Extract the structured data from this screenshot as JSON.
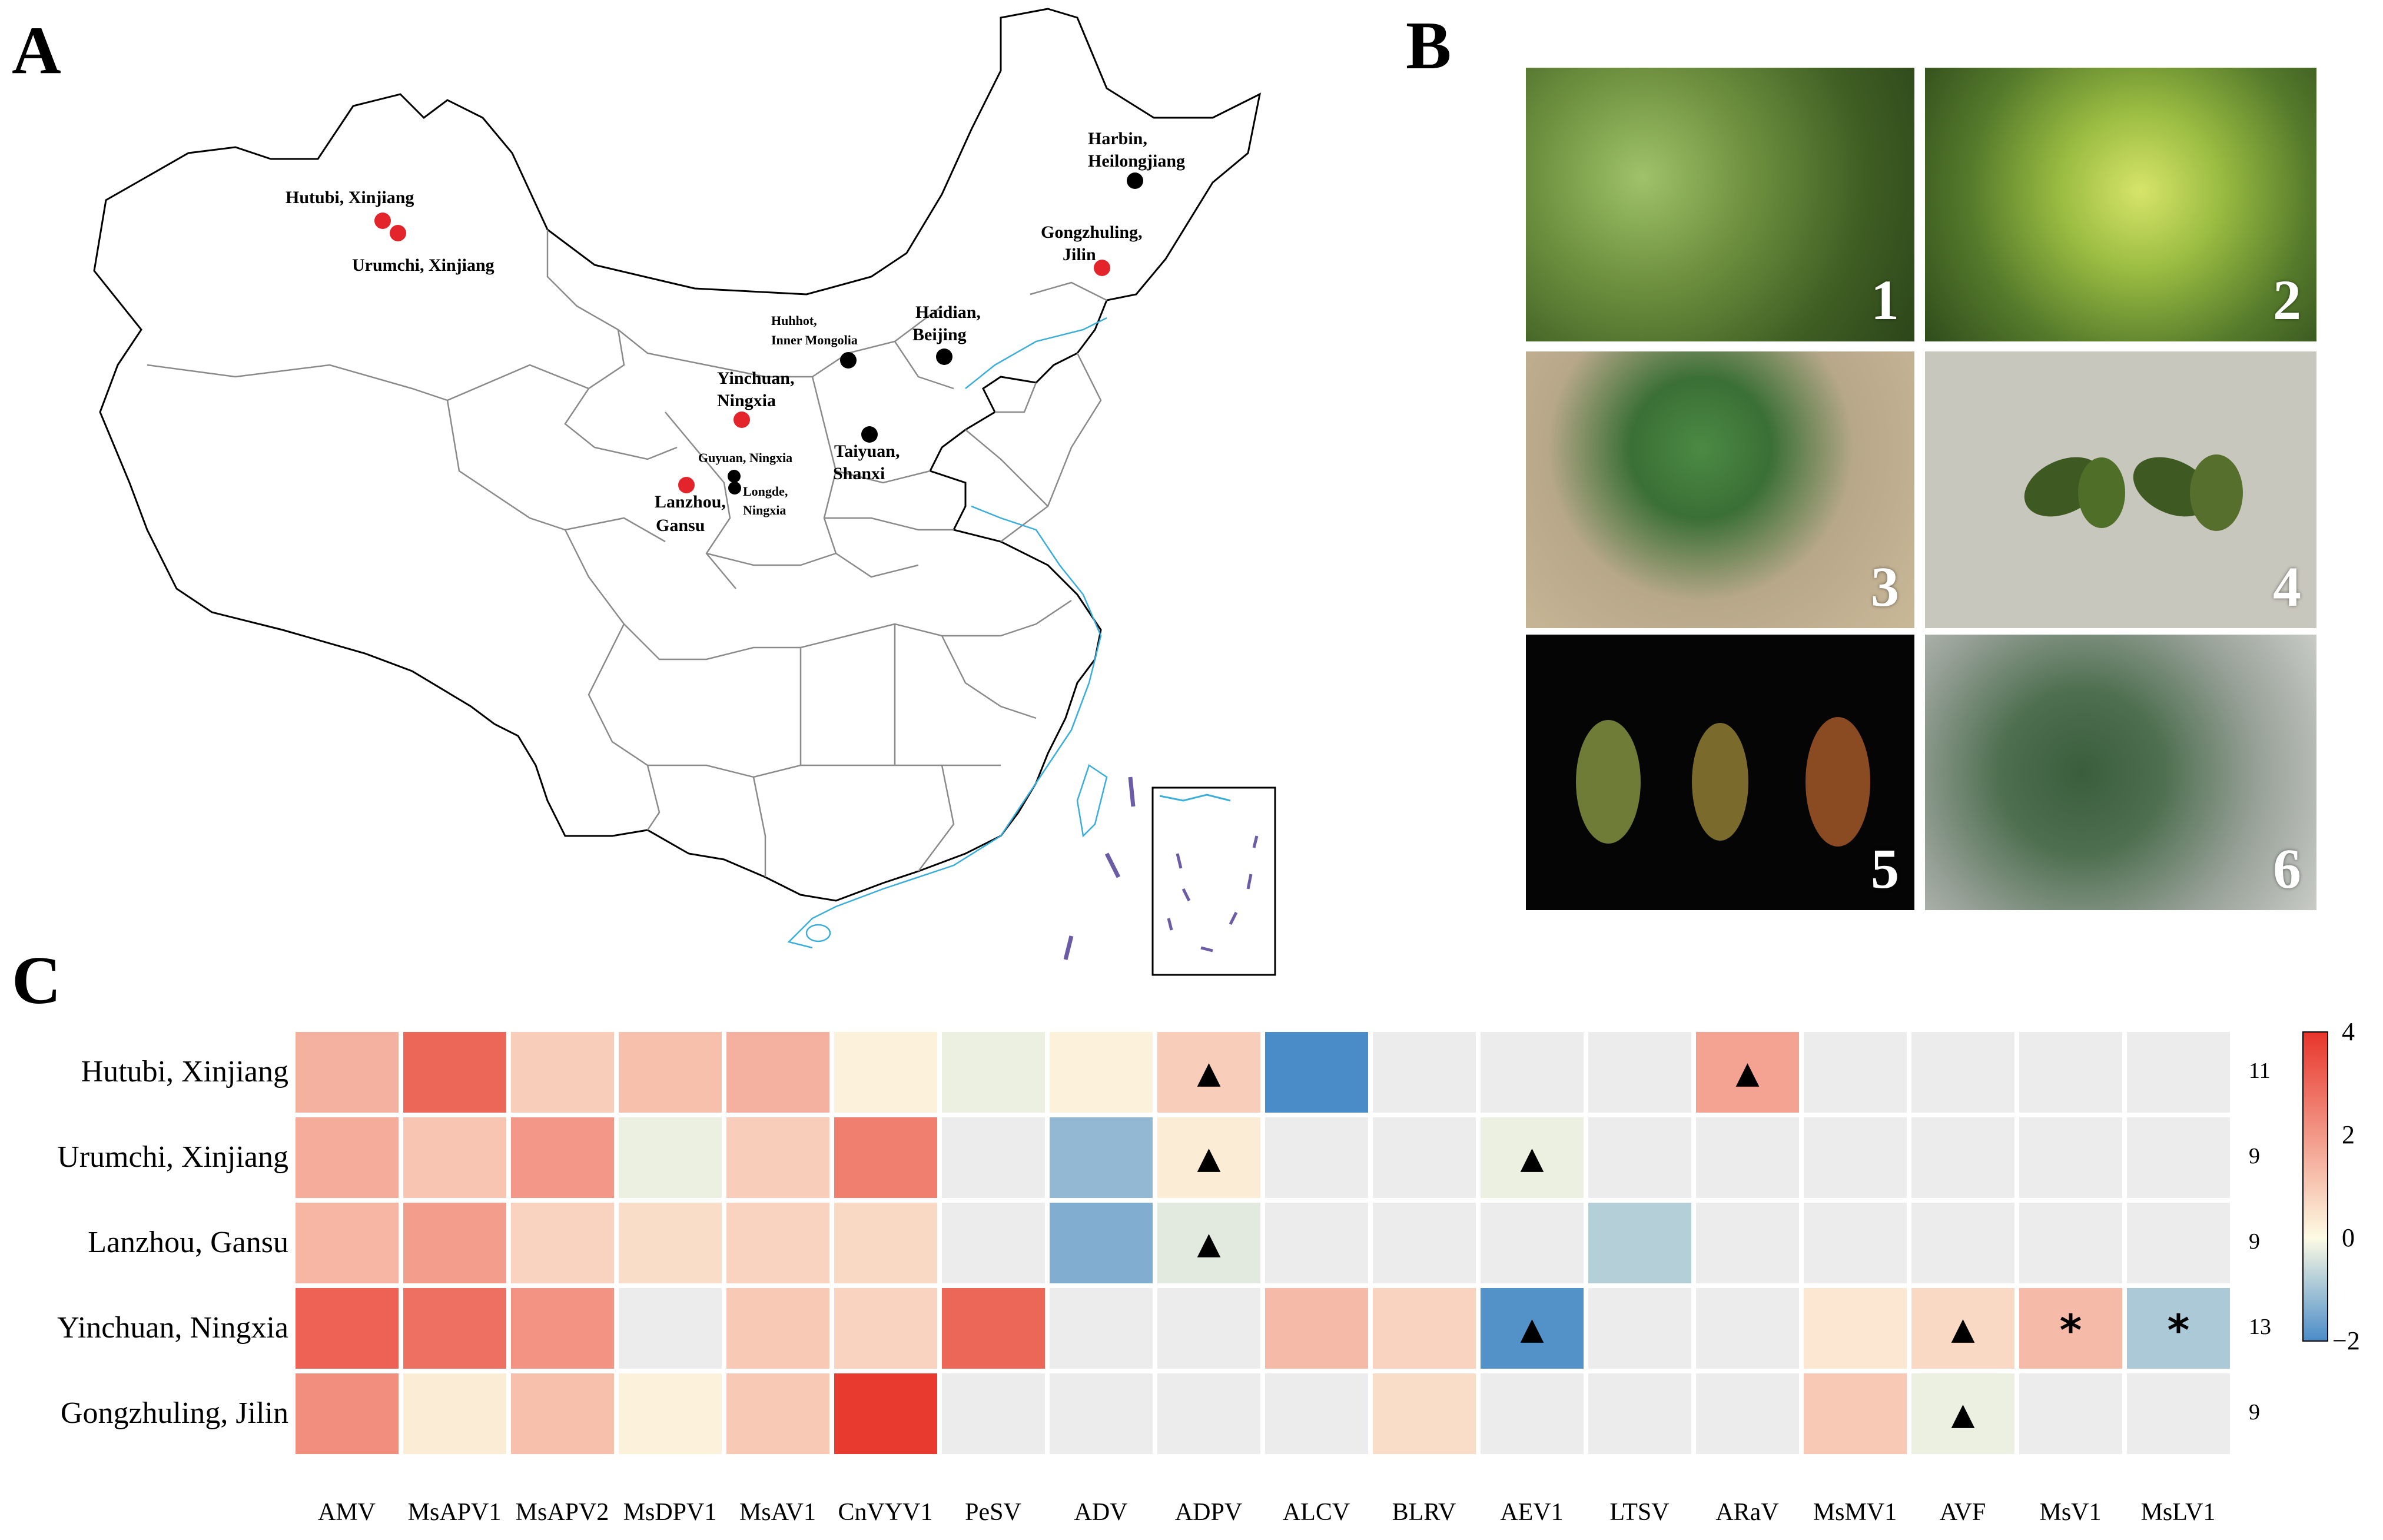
{
  "panels": {
    "a": "A",
    "b": "B",
    "c": "C"
  },
  "map": {
    "sites": [
      {
        "name": "Hutubi, Xinjiang",
        "color": "red"
      },
      {
        "name": "Urumchi, Xinjiang",
        "color": "red"
      },
      {
        "name": "Harbin, Heilongjiang",
        "color": "black"
      },
      {
        "name": "Gongzhuling, Jilin",
        "color": "red"
      },
      {
        "name": "Huhhot, Inner Mongolia",
        "color": "black"
      },
      {
        "name": "Haidian, Beijing",
        "color": "black"
      },
      {
        "name": "Yinchuan, Ningxia",
        "color": "red"
      },
      {
        "name": "Taiyuan, Shanxi",
        "color": "black"
      },
      {
        "name": "Guyuan, Ningxia",
        "color": "black"
      },
      {
        "name": "Longde, Ningxia",
        "color": "black"
      },
      {
        "name": "Lanzhou, Gansu",
        "color": "red"
      }
    ],
    "labels": {
      "hutubi": "Hutubi, Xinjiang",
      "urumchi": "Urumchi, Xinjiang",
      "harbin1": "Harbin,",
      "harbin2": "Heilongjiang",
      "gong1": "Gongzhuling,",
      "gong2": "Jilin",
      "huhhot1": "Huhhot,",
      "huhhot2": "Inner Mongolia",
      "haidian1": "Haidian,",
      "haidian2": "Beijing",
      "yinchuan1": "Yinchuan,",
      "yinchuan2": "Ningxia",
      "taiyuan1": "Taiyuan,",
      "taiyuan2": "Shanxi",
      "guyuan": "Guyuan, Ningxia",
      "longde1": "Longde,",
      "longde2": "Ningxia",
      "lanzhou1": "Lanzhou,",
      "lanzhou2": "Gansu"
    }
  },
  "photos": [
    "1",
    "2",
    "3",
    "4",
    "5",
    "6"
  ],
  "heatmap": {
    "rows": [
      "Hutubi, Xinjiang",
      "Urumchi, Xinjiang",
      "Lanzhou, Gansu",
      "Yinchuan, Ningxia",
      "Gongzhuling, Jilin"
    ],
    "columns": [
      "AMV",
      "MsAPV1",
      "MsAPV2",
      "MsDPV1",
      "MsAV1",
      "CnVYV1",
      "PeSV",
      "ADV",
      "ADPV",
      "ALCV",
      "BLRV",
      "AEV1",
      "LTSV",
      "ARaV",
      "MsMV1",
      "AVF",
      "MsV1",
      "MsLV1"
    ],
    "counts": [
      "11",
      "9",
      "9",
      "13",
      "9"
    ],
    "values": [
      [
        1.5,
        3.0,
        0.9,
        1.2,
        1.5,
        0.2,
        -0.2,
        0.2,
        0.9,
        -2.0,
        null,
        null,
        null,
        1.8,
        null,
        null,
        null,
        null
      ],
      [
        1.6,
        1.1,
        2.0,
        -0.2,
        0.9,
        2.5,
        null,
        -1.2,
        0.3,
        null,
        null,
        -0.2,
        null,
        null,
        null,
        null,
        null,
        null
      ],
      [
        1.4,
        1.9,
        0.8,
        0.6,
        0.8,
        0.7,
        null,
        -1.4,
        -0.3,
        null,
        null,
        null,
        -0.8,
        null,
        null,
        null,
        null,
        null
      ],
      [
        3.1,
        2.8,
        2.1,
        null,
        1.0,
        0.8,
        3.0,
        null,
        null,
        1.3,
        0.8,
        -1.9,
        null,
        null,
        0.4,
        0.7,
        1.3,
        -0.9
      ],
      [
        2.2,
        0.3,
        1.2,
        0.2,
        1.0,
        3.9,
        null,
        null,
        null,
        null,
        0.6,
        null,
        null,
        null,
        1.0,
        -0.2,
        null,
        null
      ]
    ],
    "markers": [
      {
        "row": 0,
        "col": 8,
        "symbol": "▲"
      },
      {
        "row": 0,
        "col": 13,
        "symbol": "▲"
      },
      {
        "row": 1,
        "col": 8,
        "symbol": "▲"
      },
      {
        "row": 1,
        "col": 11,
        "symbol": "▲"
      },
      {
        "row": 2,
        "col": 8,
        "symbol": "▲"
      },
      {
        "row": 3,
        "col": 11,
        "symbol": "▲"
      },
      {
        "row": 3,
        "col": 15,
        "symbol": "▲"
      },
      {
        "row": 3,
        "col": 16,
        "symbol": "*"
      },
      {
        "row": 3,
        "col": 17,
        "symbol": "*"
      },
      {
        "row": 4,
        "col": 15,
        "symbol": "▲"
      }
    ],
    "colorbar": {
      "ticks": [
        "4",
        "2",
        "0",
        "−2"
      ],
      "min": -2,
      "max": 4
    },
    "colors": {
      "high": "#e8352b",
      "mid": "#fdfbe4",
      "low": "#4a8cc8",
      "missing": "#ececec"
    }
  }
}
